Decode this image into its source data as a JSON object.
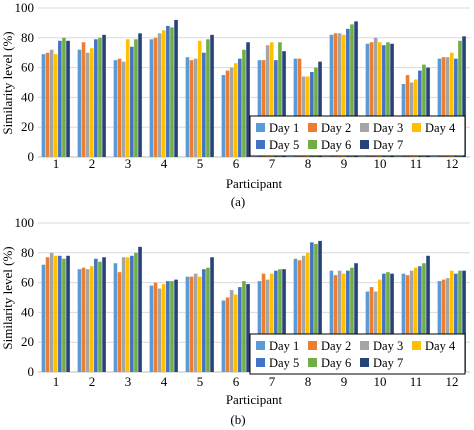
{
  "chart_data": [
    {
      "type": "bar",
      "panel_label": "(a)",
      "xlabel": "Participant",
      "ylabel": "Similarity level (%)",
      "ylim": [
        0,
        100
      ],
      "yticks": [
        "0",
        "20",
        "40",
        "60",
        "80",
        "100"
      ],
      "categories": [
        "1",
        "2",
        "3",
        "4",
        "5",
        "6",
        "7",
        "8",
        "9",
        "10",
        "11",
        "12"
      ],
      "grid": "horizontal",
      "legend_position": "bottom-right",
      "series": [
        {
          "name": "Day 1",
          "color": "#5b9bd5",
          "values": [
            69,
            72,
            65,
            79,
            67,
            55,
            65,
            66,
            82,
            76,
            49,
            66
          ]
        },
        {
          "name": "Day 2",
          "color": "#ed7d31",
          "values": [
            70,
            77,
            66,
            80,
            65,
            58,
            65,
            66,
            83,
            77,
            55,
            67
          ]
        },
        {
          "name": "Day 3",
          "color": "#a5a5a5",
          "values": [
            72,
            70,
            64,
            83,
            66,
            60,
            75,
            54,
            83,
            80,
            50,
            67
          ]
        },
        {
          "name": "Day 4",
          "color": "#ffc000",
          "values": [
            69,
            73,
            79,
            85,
            78,
            63,
            77,
            54,
            82,
            77,
            52,
            70
          ]
        },
        {
          "name": "Day 5",
          "color": "#4472c4",
          "values": [
            78,
            79,
            74,
            88,
            70,
            66,
            65,
            57,
            86,
            75,
            58,
            66
          ]
        },
        {
          "name": "Day 6",
          "color": "#70ad47",
          "values": [
            80,
            80,
            79,
            87,
            79,
            72,
            77,
            60,
            89,
            77,
            62,
            78
          ]
        },
        {
          "name": "Day 7",
          "color": "#264478",
          "values": [
            78,
            82,
            83,
            92,
            82,
            77,
            71,
            64,
            91,
            76,
            60,
            81
          ]
        }
      ]
    },
    {
      "type": "bar",
      "panel_label": "(b)",
      "xlabel": "Participant",
      "ylabel": "Similarity level (%)",
      "ylim": [
        0,
        100
      ],
      "yticks": [
        "0",
        "20",
        "40",
        "60",
        "80",
        "100"
      ],
      "categories": [
        "1",
        "2",
        "3",
        "4",
        "5",
        "6",
        "7",
        "8",
        "9",
        "10",
        "11",
        "12"
      ],
      "grid": "horizontal",
      "legend_position": "bottom-right",
      "series": [
        {
          "name": "Day 1",
          "color": "#5b9bd5",
          "values": [
            72,
            69,
            73,
            58,
            64,
            48,
            61,
            76,
            68,
            54,
            66,
            61
          ]
        },
        {
          "name": "Day 2",
          "color": "#ed7d31",
          "values": [
            77,
            70,
            67,
            60,
            64,
            50,
            66,
            75,
            65,
            57,
            65,
            62
          ]
        },
        {
          "name": "Day 3",
          "color": "#a5a5a5",
          "values": [
            80,
            69,
            77,
            56,
            66,
            55,
            62,
            78,
            68,
            54,
            68,
            63
          ]
        },
        {
          "name": "Day 4",
          "color": "#ffc000",
          "values": [
            78,
            71,
            77,
            59,
            64,
            52,
            66,
            80,
            66,
            62,
            70,
            68
          ]
        },
        {
          "name": "Day 5",
          "color": "#4472c4",
          "values": [
            78,
            76,
            78,
            61,
            69,
            57,
            68,
            87,
            68,
            66,
            71,
            66
          ]
        },
        {
          "name": "Day 6",
          "color": "#70ad47",
          "values": [
            76,
            74,
            80,
            61,
            70,
            61,
            69,
            86,
            70,
            67,
            73,
            68
          ]
        },
        {
          "name": "Day 7",
          "color": "#264478",
          "values": [
            78,
            77,
            84,
            62,
            77,
            59,
            69,
            88,
            73,
            66,
            78,
            68
          ]
        }
      ]
    }
  ]
}
